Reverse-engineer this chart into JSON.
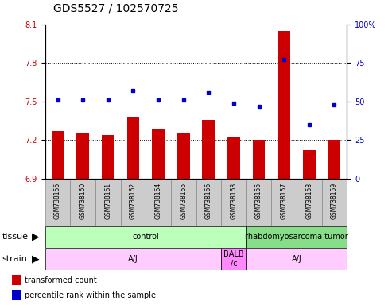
{
  "title": "GDS5527 / 102570725",
  "samples": [
    "GSM738156",
    "GSM738160",
    "GSM738161",
    "GSM738162",
    "GSM738164",
    "GSM738165",
    "GSM738166",
    "GSM738163",
    "GSM738155",
    "GSM738157",
    "GSM738158",
    "GSM738159"
  ],
  "transformed_count": [
    7.27,
    7.26,
    7.24,
    7.38,
    7.28,
    7.25,
    7.36,
    7.22,
    7.2,
    8.05,
    7.12,
    7.2
  ],
  "percentile_rank": [
    51,
    51,
    51,
    57,
    51,
    51,
    56,
    49,
    47,
    77,
    35,
    48
  ],
  "ylim_left": [
    6.9,
    8.1
  ],
  "ylim_right": [
    0,
    100
  ],
  "yticks_left": [
    6.9,
    7.2,
    7.5,
    7.8,
    8.1
  ],
  "yticks_right": [
    0,
    25,
    50,
    75,
    100
  ],
  "hlines": [
    7.2,
    7.5,
    7.8
  ],
  "bar_color": "#cc0000",
  "dot_color": "#0000cc",
  "bar_bottom": 6.9,
  "tissue_groups": [
    {
      "label": "control",
      "start": 0,
      "end": 7,
      "color": "#bbffbb"
    },
    {
      "label": "rhabdomyosarcoma tumor",
      "start": 8,
      "end": 11,
      "color": "#88dd88"
    }
  ],
  "strain_groups": [
    {
      "label": "A/J",
      "start": 0,
      "end": 6,
      "color": "#ffccff"
    },
    {
      "label": "BALB\n/c",
      "start": 7,
      "end": 7,
      "color": "#ff88ff"
    },
    {
      "label": "A/J",
      "start": 8,
      "end": 11,
      "color": "#ffccff"
    }
  ],
  "xlabel_tissue": "tissue",
  "xlabel_strain": "strain",
  "legend_bar": "transformed count",
  "legend_dot": "percentile rank within the sample",
  "tick_bg_color": "#cccccc",
  "plot_bg": "#ffffff",
  "title_fontsize": 10,
  "tick_fontsize": 7,
  "label_fontsize": 8,
  "annotation_fontsize": 7
}
